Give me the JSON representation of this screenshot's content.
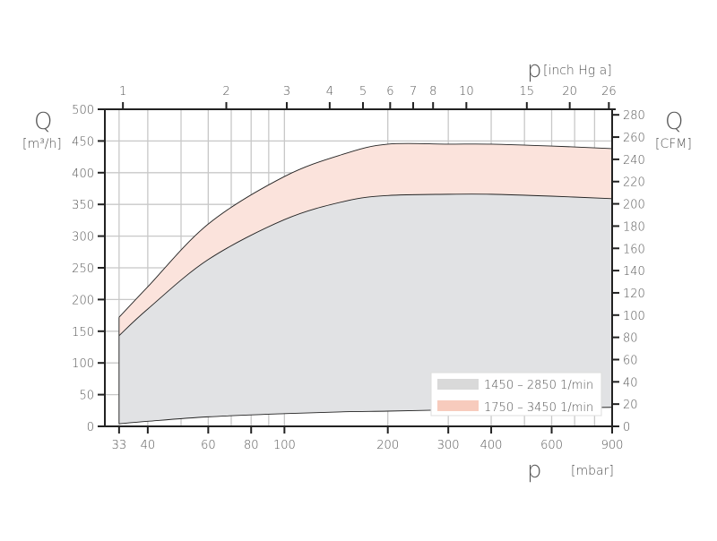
{
  "chart_data": {
    "type": "area",
    "x_scale": "log",
    "xlim": [
      30,
      900
    ],
    "ylim": [
      0,
      500
    ],
    "ylim_right": [
      0,
      285
    ],
    "grid": true,
    "legend_position": "bottom-right",
    "xlabel_symbol": "p",
    "xlabel_unit": "[mbar]",
    "x2label_symbol": "p",
    "x2label_unit": "[inch Hg a]",
    "ylabel_symbol": "Q",
    "ylabel_unit": "[m³/h]",
    "y2label_symbol": "Q",
    "y2label_unit": "[CFM]",
    "x_ticks": [
      33,
      40,
      60,
      80,
      100,
      200,
      300,
      400,
      600,
      900
    ],
    "x_grid": [
      40,
      50,
      60,
      70,
      80,
      90,
      100,
      200,
      300,
      400,
      500,
      600,
      700,
      800
    ],
    "x2_ticks": [
      1,
      2,
      3,
      4,
      5,
      6,
      7,
      8,
      10,
      15,
      20,
      26
    ],
    "y_ticks": [
      0,
      50,
      100,
      150,
      200,
      250,
      300,
      350,
      400,
      450,
      500
    ],
    "y2_ticks": [
      0,
      20,
      40,
      60,
      80,
      100,
      120,
      140,
      160,
      180,
      200,
      220,
      240,
      260,
      280
    ],
    "x": [
      33,
      40,
      60,
      100,
      150,
      200,
      300,
      400,
      600,
      900
    ],
    "lower_bound": [
      4,
      8,
      15,
      20,
      23,
      24,
      26,
      27,
      29,
      30
    ],
    "series": [
      {
        "name": "1450 – 2850  1/min",
        "color": "#e1e2e4",
        "swatch": "#d9d9d9",
        "values": [
          143,
          185,
          263,
          326,
          355,
          364,
          366,
          366,
          363,
          359
        ]
      },
      {
        "name": "1750 – 3450  1/min",
        "color": "#fbe3dc",
        "swatch": "#f7cbbd",
        "values": [
          172,
          220,
          319,
          394,
          430,
          445,
          445,
          445,
          442,
          438
        ]
      }
    ]
  }
}
